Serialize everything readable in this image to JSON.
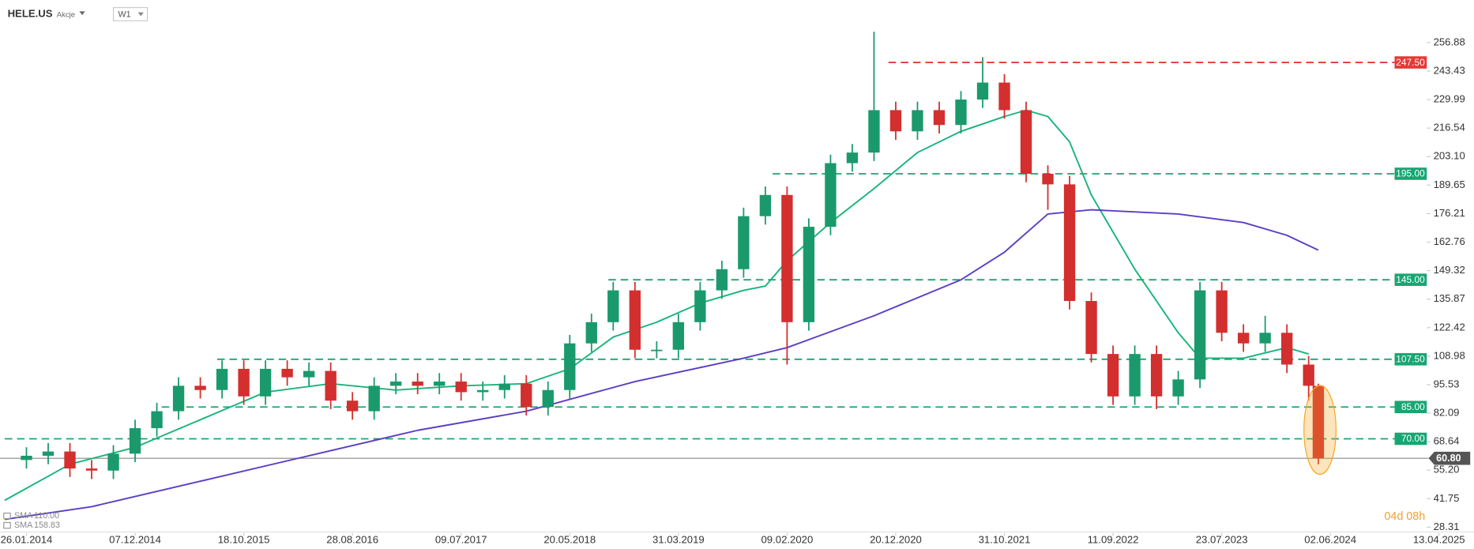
{
  "chart_data": {
    "type": "candlestick",
    "title": "HELE.US",
    "subtitle": "Akcje",
    "interval": "W1",
    "countdown": "04d 08h",
    "xlim": [
      -9,
      576
    ],
    "ylim": [
      26.5,
      265.8
    ],
    "xticks": [
      {
        "value": 0,
        "label": "26.01.2014"
      },
      {
        "value": 45,
        "label": "07.12.2014"
      },
      {
        "value": 90,
        "label": "18.10.2015"
      },
      {
        "value": 135,
        "label": "28.08.2016"
      },
      {
        "value": 180,
        "label": "09.07.2017"
      },
      {
        "value": 225,
        "label": "20.05.2018"
      },
      {
        "value": 270,
        "label": "31.03.2019"
      },
      {
        "value": 315,
        "label": "09.02.2020"
      },
      {
        "value": 360,
        "label": "20.12.2020"
      },
      {
        "value": 405,
        "label": "31.10.2021"
      },
      {
        "value": 450,
        "label": "11.09.2022"
      },
      {
        "value": 495,
        "label": "23.07.2023"
      },
      {
        "value": 540,
        "label": "02.06.2024"
      },
      {
        "value": 585,
        "label": "13.04.2025"
      }
    ],
    "yticks": [
      256.88,
      243.43,
      229.99,
      216.54,
      {
        "value": 203.1,
        "label": "203.10"
      },
      189.65,
      176.21,
      162.76,
      149.32,
      135.87,
      122.42,
      108.98,
      95.53,
      82.09,
      68.64,
      {
        "value": 55.2,
        "label": "55.20"
      },
      41.75,
      28.31
    ],
    "up_color": "#1a9a6c",
    "down_color": "#d32f2f",
    "candles": {
      "x": [
        0,
        9,
        18,
        27,
        36,
        45,
        54,
        63,
        72,
        81,
        90,
        99,
        108,
        117,
        126,
        135,
        144,
        153,
        162,
        171,
        180,
        189,
        198,
        207,
        216,
        225,
        234,
        243,
        252,
        261,
        270,
        279,
        288,
        297,
        306,
        315,
        324,
        333,
        342,
        351,
        360,
        369,
        378,
        387,
        396,
        405,
        414,
        423,
        432,
        441,
        450,
        459,
        468,
        477,
        486,
        495,
        504,
        513,
        522,
        531,
        535
      ],
      "open": [
        60,
        62,
        64,
        56,
        55,
        63,
        75,
        83,
        95,
        93,
        103,
        90,
        103,
        99,
        102,
        88,
        83,
        95,
        97,
        95,
        97,
        92,
        93,
        96,
        85,
        93,
        115,
        125,
        140,
        112,
        112,
        125,
        140,
        150,
        175,
        185,
        125,
        170,
        200,
        205,
        225,
        215,
        225,
        218,
        230,
        238,
        225,
        195,
        190,
        135,
        110,
        90,
        110,
        90,
        98,
        140,
        120,
        115,
        120,
        105,
        95
      ],
      "high": [
        66,
        68,
        68,
        60,
        67,
        79,
        87,
        99,
        99,
        107,
        107,
        107,
        107,
        106,
        106,
        92,
        99,
        101,
        101,
        101,
        101,
        97,
        100,
        100,
        97,
        119,
        129,
        144,
        144,
        116,
        129,
        144,
        154,
        179,
        189,
        189,
        174,
        204,
        209,
        262,
        229,
        229,
        229,
        234,
        250,
        242,
        229,
        199,
        194,
        139,
        114,
        114,
        114,
        102,
        144,
        144,
        124,
        128,
        124,
        109,
        96
      ],
      "low": [
        56,
        58,
        52,
        51,
        51,
        59,
        71,
        79,
        89,
        89,
        86,
        86,
        95,
        95,
        84,
        79,
        79,
        91,
        91,
        91,
        88,
        88,
        89,
        81,
        81,
        89,
        111,
        121,
        108,
        108,
        108,
        121,
        136,
        146,
        171,
        105,
        121,
        166,
        196,
        201,
        211,
        211,
        214,
        214,
        226,
        221,
        191,
        178,
        131,
        106,
        86,
        86,
        84,
        86,
        94,
        116,
        111,
        111,
        101,
        88,
        58
      ],
      "close": [
        62,
        64,
        56,
        55,
        63,
        75,
        83,
        95,
        93,
        103,
        90,
        103,
        99,
        102,
        88,
        83,
        95,
        97,
        95,
        97,
        92,
        93,
        96,
        85,
        93,
        115,
        125,
        140,
        112,
        112,
        125,
        140,
        150,
        175,
        185,
        125,
        170,
        200,
        205,
        225,
        215,
        225,
        218,
        230,
        238,
        225,
        195,
        190,
        135,
        110,
        90,
        110,
        90,
        98,
        140,
        120,
        115,
        120,
        105,
        95,
        60.8
      ]
    },
    "series": [
      {
        "name": "SMA",
        "color": "#17b57a",
        "last": {
          "value": 110,
          "label": "110.00"
        },
        "x": [
          -9,
          18,
          45,
          72,
          99,
          126,
          153,
          180,
          207,
          225,
          243,
          261,
          279,
          297,
          306,
          315,
          333,
          351,
          369,
          387,
          405,
          414,
          423,
          432,
          441,
          459,
          477,
          486,
          504,
          522,
          531
        ],
        "values": [
          41,
          58,
          66,
          79,
          92,
          96,
          93,
          95,
          96,
          103,
          118,
          125,
          134,
          140,
          142,
          154,
          172,
          188,
          205,
          215,
          222,
          225,
          222,
          210,
          185,
          150,
          120,
          108,
          108,
          113,
          110
        ]
      },
      {
        "name": "SMA",
        "color": "#5b3fc4",
        "last": {
          "value": 158.83,
          "label": "158.83"
        },
        "x": [
          -9,
          27,
          72,
          117,
          162,
          207,
          252,
          297,
          315,
          351,
          387,
          405,
          423,
          441,
          477,
          504,
          522,
          535
        ],
        "values": [
          32,
          38,
          50,
          62,
          74,
          83,
          97,
          108,
          113,
          128,
          145,
          158,
          176,
          178,
          176,
          172,
          166,
          159
        ]
      }
    ],
    "levels": {
      "values": [
        247.5,
        195,
        145,
        107.5,
        85,
        70
      ],
      "value_labels": [
        "247.50",
        "195.00",
        "145.00",
        "107.50",
        "85.00",
        "70.00"
      ],
      "colors": [
        "#e53935",
        "#17a673",
        "#17a673",
        "#17a673",
        "#17a673",
        "#17a673"
      ],
      "start": [
        357,
        309,
        241,
        79,
        56,
        -9
      ]
    },
    "current": {
      "value": 60.8,
      "label": "60.80"
    }
  }
}
